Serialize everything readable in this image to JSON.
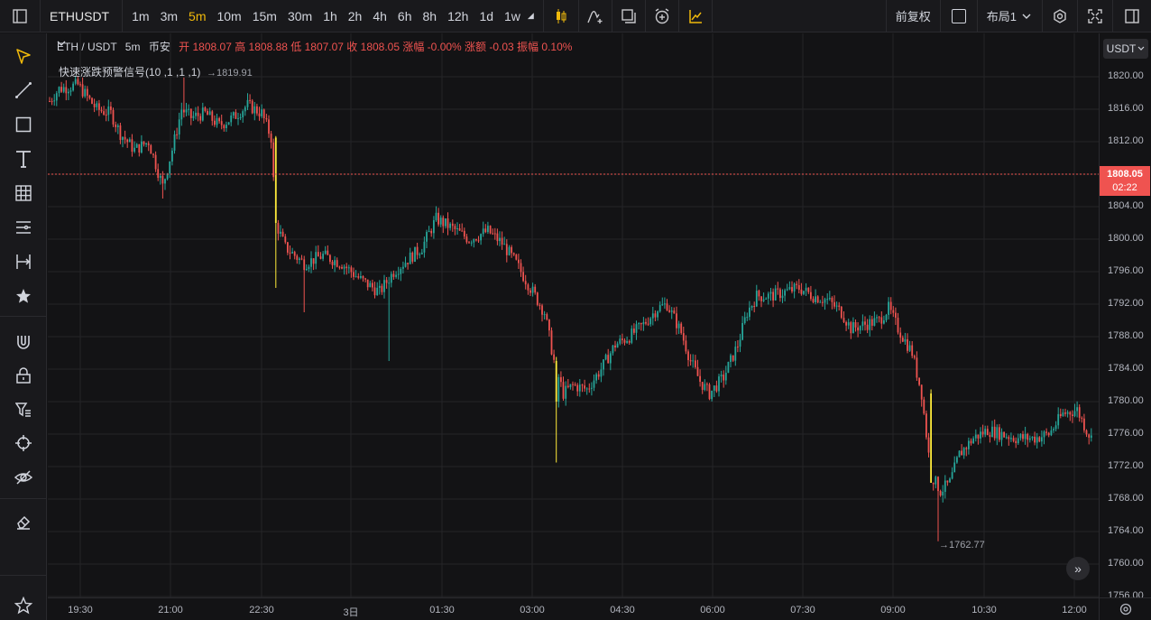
{
  "toolbar": {
    "symbol": "ETHUSDT",
    "intervals": [
      "1m",
      "3m",
      "5m",
      "10m",
      "15m",
      "30m",
      "1h",
      "2h",
      "4h",
      "6h",
      "8h",
      "12h",
      "1d",
      "1w"
    ],
    "active_interval": "5m",
    "adjust_label": "前复权",
    "layout_label": "布局1"
  },
  "legend": {
    "symbol": "ETH / USDT",
    "interval": "5m",
    "exchange": "币安",
    "ohlc": "开 1808.07 高 1808.88 低 1807.07 收 1808.05 涨幅 -0.00% 涨额 -0.03 振幅 0.10%",
    "indicator": "快速涨跌预警信号(10 ,1 ,1 ,1)"
  },
  "annotations": {
    "high": "→1819.91",
    "low": "→1762.77"
  },
  "price_scale": {
    "currency": "USDT",
    "ticks": [
      "1820.00",
      "1816.00",
      "1812.00",
      "1808.00",
      "1804.00",
      "1800.00",
      "1796.00",
      "1792.00",
      "1788.00",
      "1784.00",
      "1780.00",
      "1776.00",
      "1772.00",
      "1768.00",
      "1764.00",
      "1760.00",
      "1756.00"
    ],
    "current_price": "1808.05",
    "countdown": "02:22"
  },
  "time_scale": {
    "ticks": [
      "19:30",
      "21:00",
      "22:30",
      "3日",
      "01:30",
      "03:00",
      "04:30",
      "06:00",
      "07:30",
      "09:00",
      "10:30",
      "12:00"
    ]
  },
  "colors": {
    "up": "#26a69a",
    "down": "#ef5350",
    "signal": "#ffeb3b",
    "accent": "#f0b90b"
  }
}
